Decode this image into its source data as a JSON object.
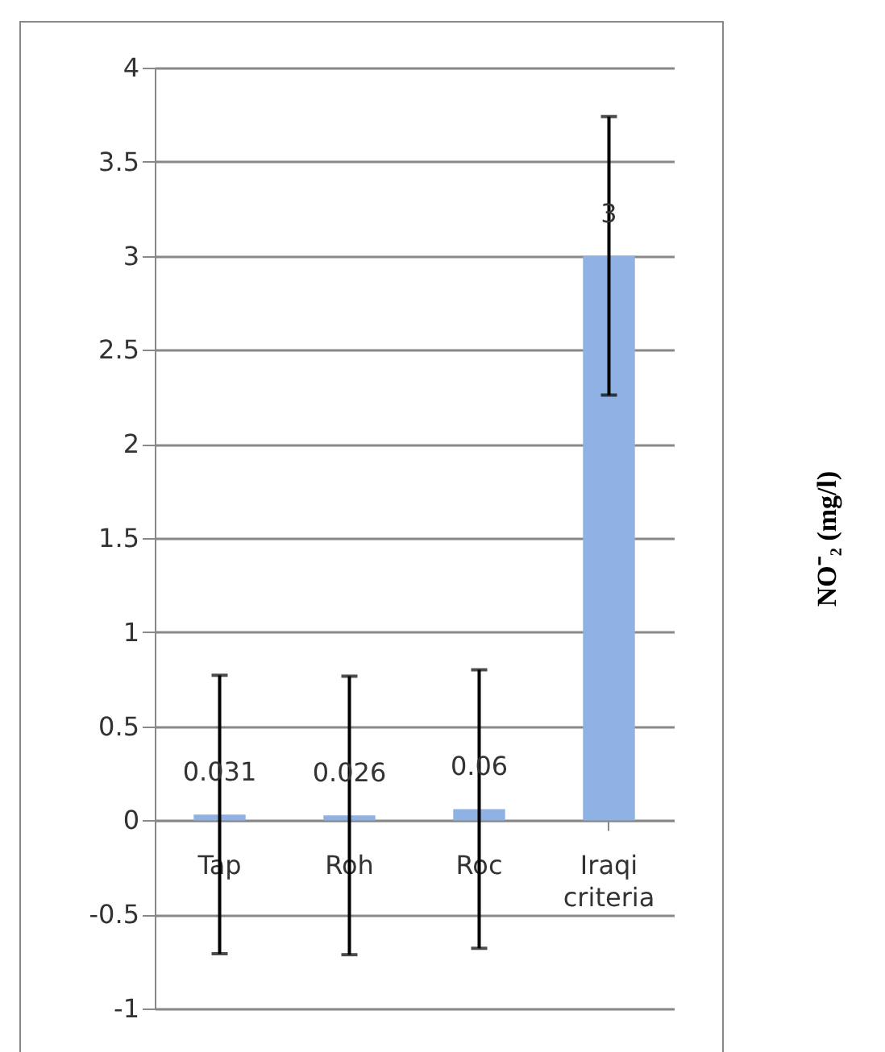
{
  "chart_data": {
    "type": "bar",
    "ylabel": "NO⁻₂ (mg/l)",
    "categories": [
      "Tap",
      "Roh",
      "Roc",
      "Iraqi criteria"
    ],
    "values": [
      0.031,
      0.026,
      0.06,
      3
    ],
    "errors": [
      0.74,
      0.74,
      0.74,
      0.74
    ],
    "color": "#8fb1e3",
    "ylim": [
      -1,
      4
    ],
    "yticks": [
      -1,
      -0.5,
      0,
      0.5,
      1,
      1.5,
      2,
      2.5,
      3,
      3.5,
      4
    ],
    "grid": "y",
    "data_labels": true
  }
}
